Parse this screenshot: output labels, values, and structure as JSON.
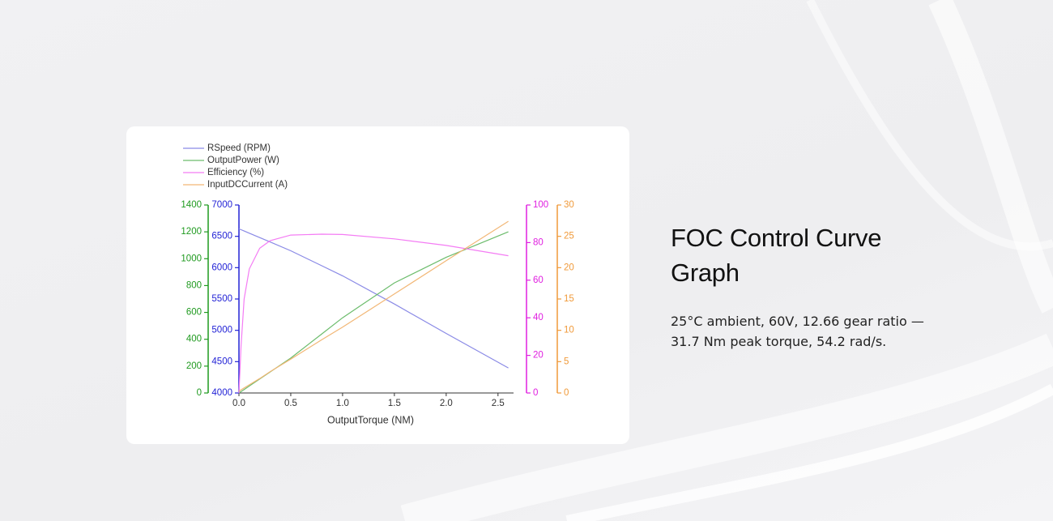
{
  "heading": "FOC Control Curve Graph",
  "description": "25°C ambient, 60V, 12.66 gear ratio — 31.7 Nm peak torque, 54.2 rad/s.",
  "chart_data": {
    "type": "line",
    "x_label": "OutputTorque (NM)",
    "x": [
      0,
      0.02,
      0.05,
      0.1,
      0.2,
      0.3,
      0.5,
      0.8,
      1.0,
      1.5,
      2.0,
      2.6
    ],
    "xlim": [
      0,
      2.65
    ],
    "xticks": [
      {
        "value": 0,
        "label": "0.0"
      },
      {
        "value": 0.5,
        "label": "0.5"
      },
      {
        "value": 1,
        "label": "1.0"
      },
      {
        "value": 1.5,
        "label": "1.5"
      },
      {
        "value": 2,
        "label": "2.0"
      },
      {
        "value": 2.5,
        "label": "2.5"
      }
    ],
    "legend": "top-left",
    "series": [
      {
        "name": "RSpeed (RPM)",
        "color": "#8a8ae6",
        "axis_color": "#2323d6",
        "axis_side": "left",
        "ylim": [
          4000,
          7000
        ],
        "yticks": [
          4000,
          4500,
          5000,
          5500,
          6000,
          6500,
          7000
        ],
        "values": [
          6620,
          6606,
          6585,
          6550,
          6480,
          6410,
          6270,
          6030,
          5870,
          5420,
          4950,
          4400
        ]
      },
      {
        "name": "OutputPower (W)",
        "color": "#6cbc6c",
        "axis_color": "#1f9a1f",
        "axis_side": "left",
        "ylim": [
          0,
          1400
        ],
        "yticks": [
          0,
          200,
          400,
          600,
          800,
          1000,
          1200,
          1400
        ],
        "values": [
          0,
          10,
          26,
          52,
          104,
          156,
          260,
          440,
          560,
          820,
          1010,
          1200
        ]
      },
      {
        "name": "Efficiency (%)",
        "color": "#f47cf4",
        "axis_color": "#e020e0",
        "axis_side": "right",
        "ylim": [
          0,
          100
        ],
        "yticks": [
          0,
          20,
          40,
          60,
          80,
          100
        ],
        "values": [
          0,
          25,
          50,
          66,
          77,
          81,
          84,
          84.5,
          84.3,
          82,
          78.5,
          73
        ]
      },
      {
        "name": "InputDCCurrent (A)",
        "color": "#f2b776",
        "axis_color": "#f09a3a",
        "axis_side": "right",
        "ylim": [
          0,
          30
        ],
        "yticks": [
          0,
          5,
          10,
          15,
          20,
          25,
          30
        ],
        "values": [
          0.3,
          0.5,
          0.8,
          1.3,
          2.3,
          3.4,
          5.4,
          8.5,
          10.5,
          15.8,
          21.1,
          27.4
        ]
      }
    ]
  }
}
